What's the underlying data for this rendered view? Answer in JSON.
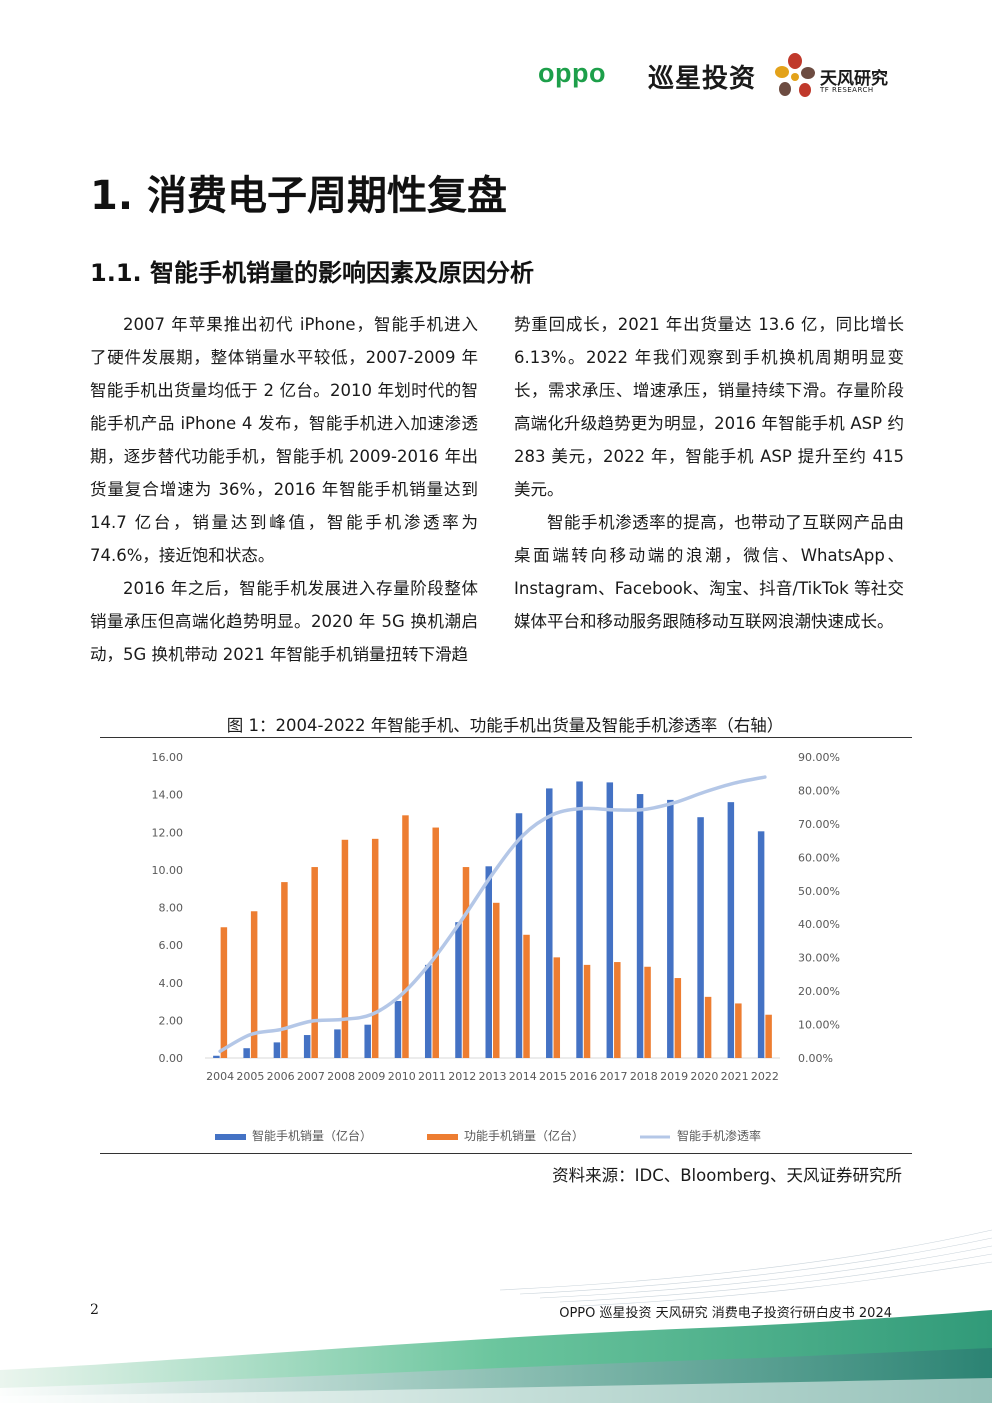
{
  "header": {
    "oppo_logo": "oppo",
    "xunxing_logo": "巡星投资",
    "tf_name": "天风研究",
    "tf_sub": "TF RESEARCH"
  },
  "section_title": "1. 消费电子周期性复盘",
  "subsection_title": "1.1. 智能手机销量的影响因素及原因分析",
  "body": {
    "p1": "2007 年苹果推出初代 iPhone，智能手机进入了硬件发展期，整体销量水平较低，2007-2009 年智能手机出货量均低于 2 亿台。2010 年划时代的智能手机产品 iPhone 4 发布，智能手机进入加速渗透期，逐步替代功能手机，智能手机 2009-2016 年出货量复合增速为 36%，2016 年智能手机销量达到 14.7 亿台，销量达到峰值，智能手机渗透率为 74.6%，接近饱和状态。",
    "p2": "2016 年之后，智能手机发展进入存量阶段整体销量承压但高端化趋势明显。2020 年 5G 换机潮启动，5G 换机带动 2021 年智能手机销量扭转下滑趋势重回成长，2021 年出货量达 13.6 亿，同比增长 6.13%。2022 年我们观察到手机换机周期明显变长，需求承压、增速承压，销量持续下滑。存量阶段高端化升级趋势更为明显，2016 年智能手机 ASP 约 283 美元，2022 年，智能手机 ASP 提升至约 415 美元。",
    "p3": "智能手机渗透率的提高，也带动了互联网产品由桌面端转向移动端的浪潮，微信、WhatsApp、Instagram、Facebook、淘宝、抖音/TikTok 等社交媒体平台和移动服务跟随移动互联网浪潮快速成长。"
  },
  "figure": {
    "title": "图 1：2004-2022 年智能手机、功能手机出货量及智能手机渗透率（右轴）",
    "source": "资料来源：IDC、Bloomberg、天风证券研究所"
  },
  "chart_data": {
    "type": "bar",
    "categories": [
      "2004",
      "2005",
      "2006",
      "2007",
      "2008",
      "2009",
      "2010",
      "2011",
      "2012",
      "2013",
      "2014",
      "2015",
      "2016",
      "2017",
      "2018",
      "2019",
      "2020",
      "2021",
      "2022"
    ],
    "series": [
      {
        "name": "智能手机销量（亿台）",
        "type": "bar",
        "axis": "left",
        "color": "#4472c4",
        "values": [
          0.12,
          0.52,
          0.83,
          1.22,
          1.52,
          1.77,
          3.03,
          4.95,
          7.22,
          10.19,
          13.01,
          14.33,
          14.7,
          14.65,
          14.03,
          13.72,
          12.8,
          13.6,
          12.05
        ]
      },
      {
        "name": "功能手机销量（亿台）",
        "type": "bar",
        "axis": "left",
        "color": "#ed7d31",
        "values": [
          6.95,
          7.8,
          9.35,
          10.15,
          11.6,
          11.65,
          12.9,
          12.25,
          10.15,
          8.25,
          6.55,
          5.35,
          4.95,
          5.1,
          4.85,
          4.25,
          3.25,
          2.9,
          2.3
        ]
      },
      {
        "name": "智能手机渗透率",
        "type": "line",
        "axis": "right",
        "color": "#b4c7e7",
        "values": [
          0.02,
          0.07,
          0.085,
          0.11,
          0.115,
          0.13,
          0.19,
          0.29,
          0.415,
          0.55,
          0.665,
          0.728,
          0.746,
          0.742,
          0.743,
          0.763,
          0.795,
          0.822,
          0.84
        ]
      }
    ],
    "left_axis": {
      "min": 0,
      "max": 16,
      "ticks": [
        "0.00",
        "2.00",
        "4.00",
        "6.00",
        "8.00",
        "10.00",
        "12.00",
        "14.00",
        "16.00"
      ]
    },
    "right_axis": {
      "min": 0,
      "max": 0.9,
      "ticks": [
        "0.00%",
        "10.00%",
        "20.00%",
        "30.00%",
        "40.00%",
        "50.00%",
        "60.00%",
        "70.00%",
        "80.00%",
        "90.00%"
      ]
    },
    "legend_position": "bottom",
    "grid": false
  },
  "footer": {
    "page_number": "2",
    "text": "OPPO 巡星投资  天风研究  消费电子投资行研白皮书 2024"
  }
}
